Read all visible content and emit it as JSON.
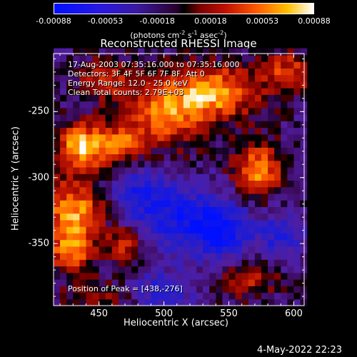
{
  "colorbar": {
    "ticks": [
      -0.00088,
      -0.00053,
      -0.00018,
      0.00018,
      0.00053,
      0.00088
    ],
    "tick_labels": [
      "-0.00088",
      "-0.00053",
      "-0.00018",
      "0.00018",
      "0.00053",
      "0.00088"
    ],
    "units_prefix": "(photons cm",
    "units_exp1": "-2",
    "units_mid": " s",
    "units_exp2": "-1",
    "units_mid2": " asec",
    "units_exp3": "-2",
    "units_suffix": ")"
  },
  "title": "Reconstructed RHESSI Image",
  "info": {
    "line1": "17-Aug-2003 07:35:16.000 to 07:35:16.000",
    "line2": "Detectors: 3F 4F 5F 6F 7F 8F, Att 0",
    "line3": "Energy Range: 12.0 - 25.0 keV",
    "line4": "Clean      Total counts: 2.79E+03"
  },
  "peak_text": "Position of Peak = [438,-276]",
  "xlabel": "Heliocentric X (arcsec)",
  "ylabel": "Heliocentric Y (arcsec)",
  "xticks": [
    450,
    500,
    550,
    600
  ],
  "yticks": [
    -250,
    -300,
    -350
  ],
  "xticks_text": [
    "450",
    "500",
    "550",
    "600"
  ],
  "yticks_text": [
    "-250",
    "-300",
    "-350"
  ],
  "timestamp": "4-May-2022 22:23",
  "chart_data": {
    "type": "heatmap",
    "title": "Reconstructed RHESSI Image",
    "xlabel": "Heliocentric X (arcsec)",
    "ylabel": "Heliocentric Y (arcsec)",
    "xlim": [
      415,
      608
    ],
    "ylim": [
      -397,
      -206
    ],
    "zlim": [
      -0.00088,
      0.00088
    ],
    "peak": [
      438,
      -276
    ],
    "sources": [
      {
        "x": 438,
        "y": -276,
        "sx": 14,
        "sy": 12,
        "amp": 1.0
      },
      {
        "x": 470,
        "y": -275,
        "sx": 12,
        "sy": 10,
        "amp": 0.55
      },
      {
        "x": 430,
        "y": -325,
        "sx": 16,
        "sy": 16,
        "amp": 0.85
      },
      {
        "x": 428,
        "y": -355,
        "sx": 12,
        "sy": 12,
        "amp": 0.7
      },
      {
        "x": 470,
        "y": -350,
        "sx": 10,
        "sy": 10,
        "amp": 0.5
      },
      {
        "x": 500,
        "y": -250,
        "sx": 22,
        "sy": 18,
        "amp": 0.75
      },
      {
        "x": 540,
        "y": -235,
        "sx": 22,
        "sy": 14,
        "amp": 0.85
      },
      {
        "x": 572,
        "y": -295,
        "sx": 12,
        "sy": 14,
        "amp": 0.9
      },
      {
        "x": 595,
        "y": -220,
        "sx": 14,
        "sy": 12,
        "amp": 0.55
      },
      {
        "x": 455,
        "y": -225,
        "sx": 14,
        "sy": 10,
        "amp": 0.5
      },
      {
        "x": 565,
        "y": -375,
        "sx": 16,
        "sy": 10,
        "amp": 0.5
      },
      {
        "x": 450,
        "y": -390,
        "sx": 18,
        "sy": 8,
        "amp": 0.35
      },
      {
        "x": 510,
        "y": -330,
        "sx": 22,
        "sy": 18,
        "amp": -0.6
      },
      {
        "x": 545,
        "y": -340,
        "sx": 16,
        "sy": 16,
        "amp": -0.7
      },
      {
        "x": 590,
        "y": -345,
        "sx": 12,
        "sy": 14,
        "amp": -0.5
      },
      {
        "x": 480,
        "y": -310,
        "sx": 14,
        "sy": 14,
        "amp": -0.45
      },
      {
        "x": 500,
        "y": -385,
        "sx": 16,
        "sy": 10,
        "amp": -0.5
      }
    ]
  }
}
